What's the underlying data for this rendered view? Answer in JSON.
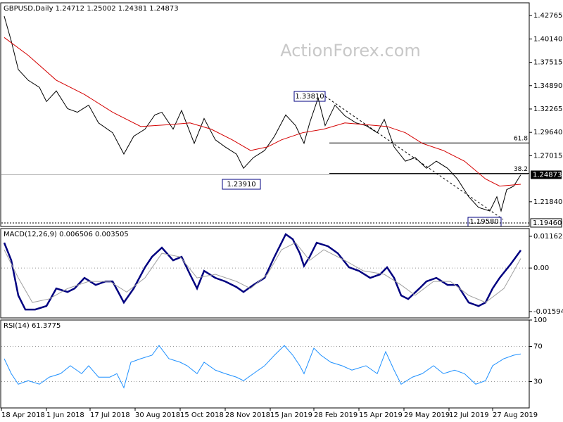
{
  "chart_data": [
    {
      "type": "line",
      "title": "GBPUSD,Daily 1.24712 1.25002 1.24381 1.24873",
      "watermark": "ActionForex.com",
      "xlim": [
        0,
        375
      ],
      "ylim": [
        1.1906,
        1.442
      ],
      "yticks": [
        1.42765,
        {
          "value": 1.4014,
          "label": "1.40140"
        },
        1.37515,
        {
          "value": 1.3489,
          "label": "1.34890"
        },
        1.32265,
        {
          "value": 1.2964,
          "label": "1.29640"
        },
        1.27015,
        {
          "value": 1.2184,
          "label": "1.21840"
        }
      ],
      "last_price": {
        "value": 1.24873,
        "label": "1.24873"
      },
      "support": {
        "value": 1.1946,
        "label": "1.19460"
      },
      "fib_levels": [
        {
          "value": 1.2845,
          "label": "61.8"
        },
        {
          "value": 1.2503,
          "label": "38.2"
        }
      ],
      "annotations": [
        "1.33810",
        "1.23910",
        "1.19580"
      ],
      "series": [
        {
          "name": "GBPUSD",
          "color": "#000000",
          "x": [
            2,
            7,
            12,
            19,
            27,
            32,
            39,
            47,
            54,
            62,
            69,
            79,
            87,
            94,
            102,
            109,
            114,
            122,
            128,
            137,
            144,
            152,
            159,
            167,
            172,
            179,
            187,
            194,
            202,
            209,
            215,
            219,
            225,
            230,
            237,
            244,
            252,
            259,
            267,
            272,
            279,
            287,
            294,
            302,
            309,
            317,
            324,
            332,
            339,
            347,
            352,
            355,
            359,
            364,
            369
          ],
          "values": [
            1.427,
            1.399,
            1.367,
            1.355,
            1.347,
            1.331,
            1.343,
            1.323,
            1.319,
            1.327,
            1.307,
            1.296,
            1.272,
            1.292,
            1.3,
            1.316,
            1.319,
            1.3,
            1.321,
            1.284,
            1.312,
            1.288,
            1.28,
            1.272,
            1.256,
            1.268,
            1.276,
            1.292,
            1.316,
            1.304,
            1.284,
            1.307,
            1.335,
            1.304,
            1.327,
            1.315,
            1.307,
            1.304,
            1.296,
            1.311,
            1.28,
            1.264,
            1.268,
            1.256,
            1.264,
            1.256,
            1.244,
            1.224,
            1.212,
            1.208,
            1.224,
            1.208,
            1.232,
            1.236,
            1.2487
          ]
        },
        {
          "name": "MA",
          "color": "#d40000",
          "x": [
            2,
            19,
            39,
            59,
            79,
            99,
            119,
            134,
            149,
            164,
            177,
            189,
            199,
            214,
            229,
            244,
            259,
            274,
            287,
            299,
            314,
            329,
            344,
            354,
            369
          ],
          "values": [
            1.403,
            1.383,
            1.355,
            1.339,
            1.319,
            1.303,
            1.305,
            1.307,
            1.3,
            1.288,
            1.276,
            1.28,
            1.288,
            1.296,
            1.3,
            1.307,
            1.305,
            1.303,
            1.296,
            1.284,
            1.276,
            1.264,
            1.244,
            1.236,
            1.238
          ]
        }
      ]
    },
    {
      "type": "line",
      "title": "MACD(12,26,9) 0.006506 0.003505",
      "xlim": [
        0,
        375
      ],
      "ylim": [
        -0.01827,
        0.01446
      ],
      "yticks": [
        0.011629,
        {
          "value": 0,
          "label": "0.00"
        },
        -0.015949
      ],
      "zero_line": true,
      "series": [
        {
          "name": "MACD",
          "color": "#000080",
          "width": 2.5,
          "x": [
            2,
            7,
            12,
            17,
            24,
            32,
            39,
            47,
            52,
            59,
            67,
            74,
            79,
            87,
            94,
            102,
            107,
            114,
            122,
            128,
            134,
            139,
            144,
            152,
            159,
            167,
            172,
            179,
            187,
            194,
            202,
            207,
            212,
            215,
            219,
            224,
            232,
            239,
            247,
            254,
            262,
            269,
            274,
            279,
            284,
            289,
            297,
            302,
            309,
            317,
            324,
            332,
            339,
            344,
            349,
            354,
            362,
            369
          ],
          "values": [
            0.00928,
            0.00284,
            -0.01005,
            -0.01521,
            -0.01521,
            -0.01392,
            -0.00747,
            -0.00876,
            -0.00747,
            -0.00361,
            -0.00619,
            -0.0049,
            -0.0049,
            -0.01263,
            -0.00747,
            0.00026,
            0.00412,
            0.00747,
            0.00284,
            0.00412,
            -0.00232,
            -0.00747,
            -0.00103,
            -0.00361,
            -0.0049,
            -0.00696,
            -0.00876,
            -0.00619,
            -0.00361,
            0.00412,
            0.01237,
            0.01057,
            0.00541,
            0.00077,
            0.00412,
            0.00928,
            0.00799,
            0.00541,
            0.00026,
            -0.00103,
            -0.00361,
            -0.00232,
            0.00026,
            -0.00361,
            -0.01005,
            -0.01134,
            -0.00747,
            -0.0049,
            -0.00361,
            -0.00619,
            -0.00619,
            -0.01263,
            -0.01392,
            -0.01263,
            -0.00747,
            -0.00361,
            0.00155,
            0.0065
          ]
        },
        {
          "name": "Signal",
          "color": "#a0a0a0",
          "width": 1,
          "x": [
            2,
            12,
            22,
            34,
            47,
            62,
            77,
            89,
            102,
            114,
            127,
            139,
            152,
            167,
            177,
            189,
            199,
            209,
            219,
            229,
            244,
            257,
            272,
            284,
            294,
            307,
            319,
            332,
            344,
            357,
            369
          ],
          "values": [
            0.0067,
            -0.0036,
            -0.0126,
            -0.0113,
            -0.0075,
            -0.0049,
            -0.0049,
            -0.0088,
            -0.0036,
            0.0054,
            0.0041,
            -0.0036,
            -0.0023,
            -0.0049,
            -0.0075,
            -0.0023,
            0.0067,
            0.0093,
            0.0028,
            0.0067,
            0.0028,
            -0.001,
            -0.0023,
            -0.0062,
            -0.01,
            -0.0049,
            -0.0049,
            -0.01,
            -0.0126,
            -0.0075,
            0.0035
          ]
        }
      ]
    },
    {
      "type": "line",
      "title": "RSI(14) 61.3775",
      "xlim": [
        0,
        375
      ],
      "ylim": [
        0,
        100
      ],
      "yticks": [
        100,
        70,
        30
      ],
      "grid": true,
      "xticks": [
        {
          "value": 0,
          "label": "18 Apr 2018"
        },
        {
          "value": 32,
          "label": "1 Jun 2018"
        },
        {
          "value": 63,
          "label": "17 Jul 2018"
        },
        {
          "value": 95,
          "label": "30 Aug 2018"
        },
        {
          "value": 127,
          "label": "15 Oct 2018"
        },
        {
          "value": 159,
          "label": "28 Nov 2018"
        },
        {
          "value": 191,
          "label": "15 Jan 2019"
        },
        {
          "value": 222,
          "label": "28 Feb 2019"
        },
        {
          "value": 254,
          "label": "15 Apr 2019"
        },
        {
          "value": 286,
          "label": "29 May 2019"
        },
        {
          "value": 318,
          "label": "12 Jul 2019"
        },
        {
          "value": 349,
          "label": "27 Aug 2019"
        }
      ],
      "series": [
        {
          "name": "RSI",
          "color": "#1e90ff",
          "width": 1,
          "x": [
            2,
            7,
            12,
            19,
            27,
            34,
            42,
            49,
            57,
            62,
            69,
            77,
            82,
            87,
            92,
            99,
            107,
            112,
            119,
            127,
            132,
            139,
            144,
            152,
            159,
            167,
            172,
            179,
            187,
            194,
            201,
            207,
            212,
            215,
            222,
            227,
            234,
            242,
            249,
            259,
            267,
            273,
            279,
            284,
            292,
            299,
            307,
            314,
            322,
            329,
            337,
            344,
            349,
            357,
            364,
            369
          ],
          "values": [
            56,
            39,
            27,
            31,
            27,
            35,
            39,
            48,
            39,
            48,
            35,
            35,
            39,
            23,
            52,
            56,
            60,
            71,
            56,
            52,
            48,
            39,
            52,
            43,
            39,
            35,
            31,
            39,
            48,
            60,
            71,
            60,
            48,
            39,
            68,
            60,
            52,
            48,
            43,
            48,
            39,
            64,
            43,
            27,
            35,
            39,
            48,
            39,
            43,
            39,
            27,
            31,
            48,
            56,
            60,
            61.4
          ]
        }
      ]
    }
  ]
}
